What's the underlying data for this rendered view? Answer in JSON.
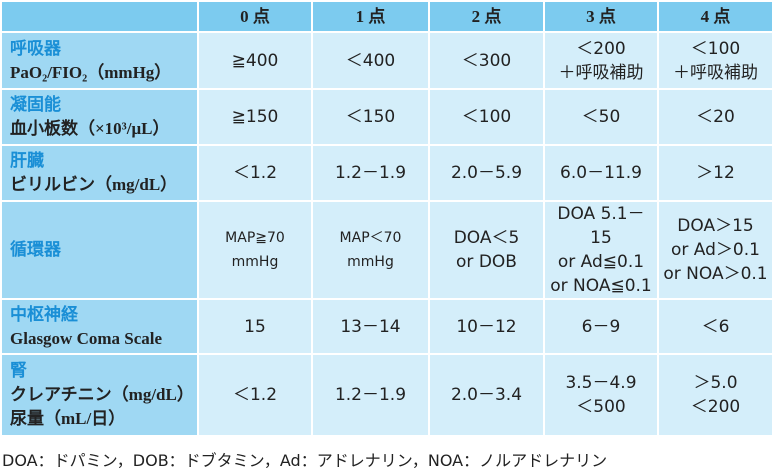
{
  "table": {
    "header": [
      "0 点",
      "1 点",
      "2 点",
      "3 点",
      "4 点"
    ],
    "rows": [
      {
        "category": "呼吸器",
        "measure": [
          "PaO₂/FIO₂（mmHg）"
        ],
        "cells": [
          [
            "≧400"
          ],
          [
            "＜400"
          ],
          [
            "＜300"
          ],
          [
            "＜200",
            "＋呼吸補助"
          ],
          [
            "＜100",
            "＋呼吸補助"
          ]
        ]
      },
      {
        "category": "凝固能",
        "measure": [
          "血小板数（×10³/μL）"
        ],
        "cells": [
          [
            "≧150"
          ],
          [
            "＜150"
          ],
          [
            "＜100"
          ],
          [
            "＜50"
          ],
          [
            "＜20"
          ]
        ]
      },
      {
        "category": "肝臓",
        "measure": [
          "ビリルビン（mg/dL）"
        ],
        "cells": [
          [
            "＜1.2"
          ],
          [
            "1.2－1.9"
          ],
          [
            "2.0－5.9"
          ],
          [
            "6.0－11.9"
          ],
          [
            "＞12"
          ]
        ]
      },
      {
        "category": "循環器",
        "measure": [],
        "cells": [
          [
            "MAP≧70 mmHg"
          ],
          [
            "MAP＜70 mmHg"
          ],
          [
            "DOA＜5",
            "or DOB"
          ],
          [
            "DOA 5.1－15",
            "or Ad≦0.1",
            "or NOA≦0.1"
          ],
          [
            "DOA＞15",
            "or Ad＞0.1",
            "or NOA＞0.1"
          ]
        ]
      },
      {
        "category": "中枢神経",
        "measure": [
          "Glasgow Coma Scale"
        ],
        "cells": [
          [
            "15"
          ],
          [
            "13－14"
          ],
          [
            "10－12"
          ],
          [
            "6－9"
          ],
          [
            "＜6"
          ]
        ]
      },
      {
        "category": "腎",
        "measure": [
          "クレアチニン（mg/dL）",
          "尿量（mL/日）"
        ],
        "cells": [
          [
            "＜1.2"
          ],
          [
            "1.2－1.9"
          ],
          [
            "2.0－3.4"
          ],
          [
            "3.5－4.9",
            "＜500"
          ],
          [
            "＞5.0",
            "＜200"
          ]
        ]
      }
    ]
  },
  "footnote": "DOA：ドパミン，DOB：ドブタミン，Ad：アドレナリン，NOA：ノルアドレナリン"
}
